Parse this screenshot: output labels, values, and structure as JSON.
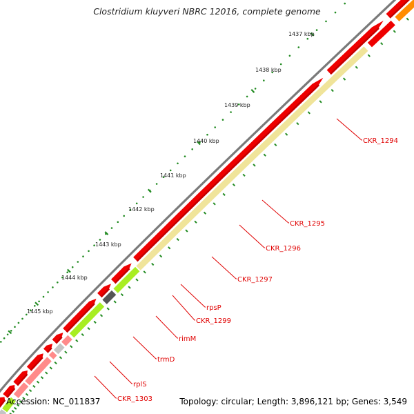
{
  "title": "Clostridium kluyveri NBRC 12016, complete genome",
  "accession_label": "Accession: NC_011837",
  "topology_label": "Topology: circular; Length: 3,896,121 bp; Genes: 3,549",
  "kbp_ticks": [
    "1437 kbp",
    "1438 kbp",
    "1439 kbp",
    "1440 kbp",
    "1441 kbp",
    "1442 kbp",
    "1443 kbp",
    "1444 kbp",
    "1445 kbp"
  ],
  "gene_labels": [
    "CKR_1294",
    "CKR_1295",
    "CKR_1296",
    "CKR_1297",
    "rpsP",
    "CKR_1299",
    "rimM",
    "trmD",
    "rplS",
    "CKR_1303"
  ],
  "colors": {
    "forward_strand": "#ee0000",
    "highlight": "#ff8a8a",
    "yellow": "#f0e49a",
    "green": "#a8ee22",
    "gray": "#c4c4c4",
    "dark_gray": "#555555",
    "orange": "#ff8c00",
    "magenta": "#ff3cb4",
    "dot_green": "#228b22",
    "label_red": "#e00000"
  }
}
